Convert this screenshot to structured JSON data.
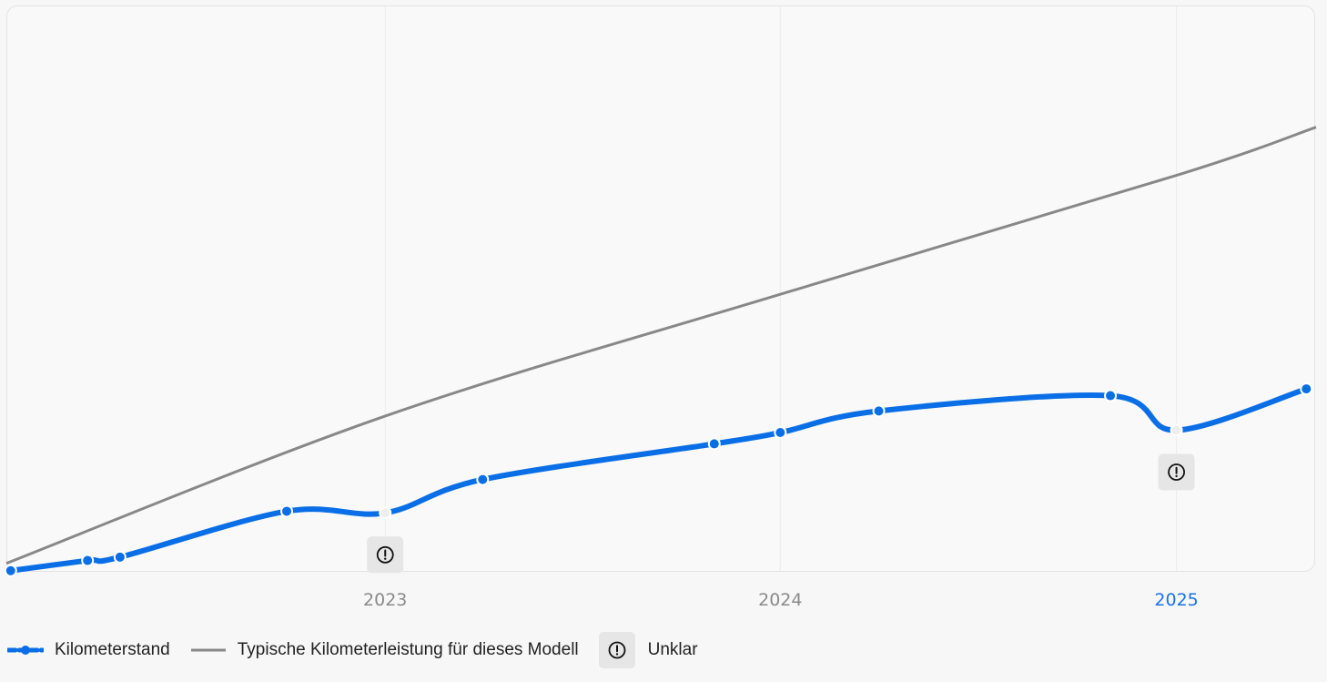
{
  "chart_data": {
    "type": "line",
    "title": "",
    "xlabel": "",
    "ylabel": "",
    "x_ticks": [
      "2023",
      "2024",
      "2025"
    ],
    "highlighted_tick": "2025",
    "xlim": [
      "2022-01-16",
      "2025-05-10"
    ],
    "ylim": [
      0,
      100
    ],
    "grid": true,
    "legend_position": "bottom-left",
    "series": [
      {
        "name": "Kilometerstand",
        "color": "#0a6ee6",
        "points": [
          {
            "x": "2022-01-20",
            "y": 0.2,
            "status": "ok"
          },
          {
            "x": "2022-04-01",
            "y": 2.0,
            "status": "ok"
          },
          {
            "x": "2022-05-01",
            "y": 2.6,
            "status": "ok"
          },
          {
            "x": "2022-10-02",
            "y": 10.7,
            "status": "ok"
          },
          {
            "x": "2023-01-01",
            "y": 10.4,
            "status": "unclear"
          },
          {
            "x": "2023-04-01",
            "y": 16.3,
            "status": "ok"
          },
          {
            "x": "2023-11-01",
            "y": 22.6,
            "status": "ok"
          },
          {
            "x": "2024-01-01",
            "y": 24.6,
            "status": "ok"
          },
          {
            "x": "2024-04-01",
            "y": 28.4,
            "status": "ok"
          },
          {
            "x": "2024-11-01",
            "y": 31.1,
            "status": "ok"
          },
          {
            "x": "2025-01-01",
            "y": 25.0,
            "status": "unclear"
          },
          {
            "x": "2025-05-01",
            "y": 32.3,
            "status": "ok"
          }
        ]
      },
      {
        "name": "Typische Kilometerleistung für dieses Modell",
        "color": "#888888",
        "points": [
          {
            "x": "2022-01-16",
            "y": 1.5
          },
          {
            "x": "2023-01-01",
            "y": 27.5
          },
          {
            "x": "2024-01-01",
            "y": 49.0
          },
          {
            "x": "2025-01-01",
            "y": 70.0
          },
          {
            "x": "2025-05-10",
            "y": 78.5
          }
        ]
      }
    ]
  },
  "legend": {
    "items": [
      {
        "label": "Kilometerstand",
        "color": "#0a6ee6",
        "icon": "dashed-line-dot-icon"
      },
      {
        "label": "Typische Kilometerleistung für dieses Modell",
        "color": "#888888",
        "icon": "solid-line-icon"
      },
      {
        "label": "Unklar",
        "icon": "warning-icon"
      }
    ]
  }
}
